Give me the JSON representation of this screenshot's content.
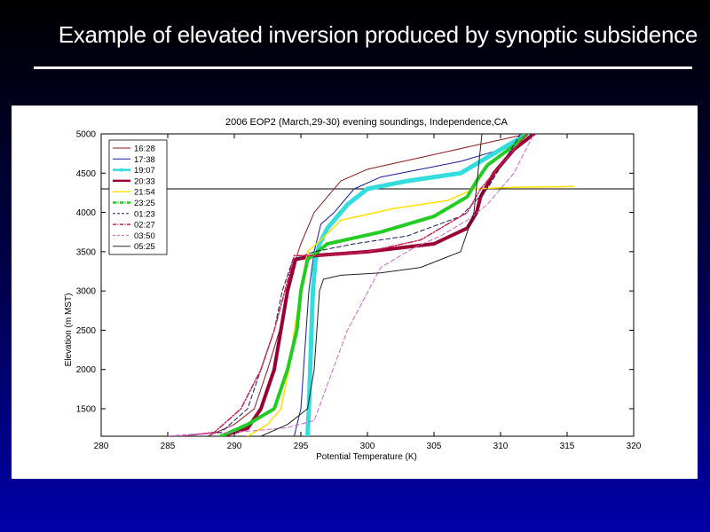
{
  "slide": {
    "title": "Example of elevated inversion produced by synoptic subsidence"
  },
  "chart_data": {
    "type": "line",
    "title": "2006 EOP2 (March,29-30) evening soundings, Independence,CA",
    "xlabel": "Potential Temperature (K)",
    "ylabel": "Elevation (m MST)",
    "xlim": [
      280,
      320
    ],
    "ylim": [
      1150,
      5000
    ],
    "xticks": [
      280,
      285,
      290,
      295,
      300,
      305,
      310,
      315,
      320
    ],
    "yticks": [
      1500,
      2000,
      2500,
      3000,
      3500,
      4000,
      4500,
      5000
    ],
    "reference_line": {
      "y": 4300,
      "color": "#000000"
    },
    "legend_position": "top-left",
    "series": [
      {
        "name": "16:28",
        "color": "#8b1a1a",
        "style": "solid",
        "width": 1,
        "x": [
          288,
          290,
          291.5,
          292.5,
          293.4,
          294,
          294.4,
          295,
          296,
          298,
          300,
          304,
          308,
          312
        ],
        "y": [
          1150,
          1300,
          1500,
          2000,
          2500,
          3000,
          3300,
          3600,
          4000,
          4400,
          4550,
          4700,
          4850,
          5000
        ]
      },
      {
        "name": "17:38",
        "color": "#1a1a99",
        "style": "solid",
        "width": 1,
        "x": [
          294.5,
          295,
          295.2,
          295.4,
          295.6,
          296,
          296.5,
          297.5,
          299,
          301,
          304,
          307,
          310,
          312
        ],
        "y": [
          1150,
          1500,
          2000,
          2500,
          3000,
          3500,
          3850,
          4000,
          4300,
          4450,
          4550,
          4650,
          4800,
          5000
        ]
      },
      {
        "name": "19:07",
        "color": "#33dddd",
        "style": "solid",
        "width": 5,
        "x": [
          295.5,
          295.6,
          295.7,
          295.8,
          295.9,
          296.1,
          296.4,
          297,
          298.5,
          300,
          303,
          307,
          310,
          312
        ],
        "y": [
          1150,
          1500,
          2000,
          2500,
          3000,
          3400,
          3600,
          3800,
          4100,
          4300,
          4400,
          4500,
          4800,
          5000
        ]
      },
      {
        "name": "20:33",
        "color": "#990033",
        "style": "solid",
        "width": 4,
        "x": [
          289,
          291,
          292,
          293,
          293.5,
          294,
          294.6,
          296,
          300,
          305,
          307.5,
          308.2,
          308.5,
          309.5,
          311,
          312.5
        ],
        "y": [
          1150,
          1250,
          1500,
          2000,
          2500,
          3000,
          3400,
          3450,
          3500,
          3600,
          3800,
          4000,
          4200,
          4500,
          4800,
          5000
        ]
      },
      {
        "name": "21:54",
        "color": "#ffe000",
        "style": "solid",
        "width": 1.5,
        "x": [
          291,
          292.5,
          293.5,
          294.1,
          294.5,
          295,
          295.5,
          296.5,
          298,
          302,
          306,
          308,
          311,
          315.5
        ],
        "y": [
          1150,
          1300,
          1500,
          2000,
          2500,
          3000,
          3500,
          3650,
          3900,
          4050,
          4150,
          4300,
          4320,
          4330
        ]
      },
      {
        "name": "23:25",
        "color": "#22cc22",
        "style": "dashdot",
        "width": 4,
        "x": [
          289,
          291,
          293,
          294,
          294.7,
          295,
          295.5,
          297,
          301,
          305,
          307.5,
          308.2,
          309,
          311,
          312
        ],
        "y": [
          1150,
          1300,
          1500,
          2000,
          2500,
          3000,
          3400,
          3600,
          3750,
          3950,
          4200,
          4400,
          4600,
          4850,
          5000
        ]
      },
      {
        "name": "01:23",
        "color": "#1a1a66",
        "style": "dashed",
        "width": 1,
        "x": [
          285,
          289,
          291,
          292,
          293,
          293.6,
          294.4,
          296,
          299,
          303,
          307,
          309,
          311.5
        ],
        "y": [
          1150,
          1200,
          1500,
          2000,
          2500,
          3000,
          3400,
          3500,
          3600,
          3700,
          3950,
          4300,
          5000
        ]
      },
      {
        "name": "02:27",
        "color": "#cc2255",
        "style": "dashdot",
        "width": 1.5,
        "x": [
          286,
          288.5,
          290.5,
          292,
          293,
          293.8,
          294.5,
          296.5,
          300,
          304,
          307.5,
          308.5,
          312
        ],
        "y": [
          1150,
          1200,
          1500,
          2000,
          2500,
          3000,
          3450,
          3450,
          3500,
          3650,
          4000,
          4300,
          5000
        ]
      },
      {
        "name": "03:50",
        "color": "#cc66cc",
        "style": "dashed",
        "width": 1,
        "x": [
          285,
          288,
          291.5,
          294,
          296,
          298.5,
          301,
          303.5,
          305.5,
          307.5,
          309,
          311,
          312.5
        ],
        "y": [
          1150,
          1180,
          1220,
          1260,
          1350,
          2500,
          3300,
          3550,
          3700,
          3900,
          4100,
          4500,
          5000
        ]
      },
      {
        "name": "05:25",
        "color": "#222222",
        "style": "solid",
        "width": 1,
        "x": [
          292,
          294,
          295.5,
          296,
          296.2,
          296.4,
          296.7,
          298,
          301,
          304,
          307,
          308,
          308.3,
          308.6
        ],
        "y": [
          1150,
          1300,
          1500,
          2000,
          2500,
          3000,
          3150,
          3200,
          3230,
          3300,
          3500,
          4000,
          4500,
          5000
        ]
      }
    ]
  }
}
